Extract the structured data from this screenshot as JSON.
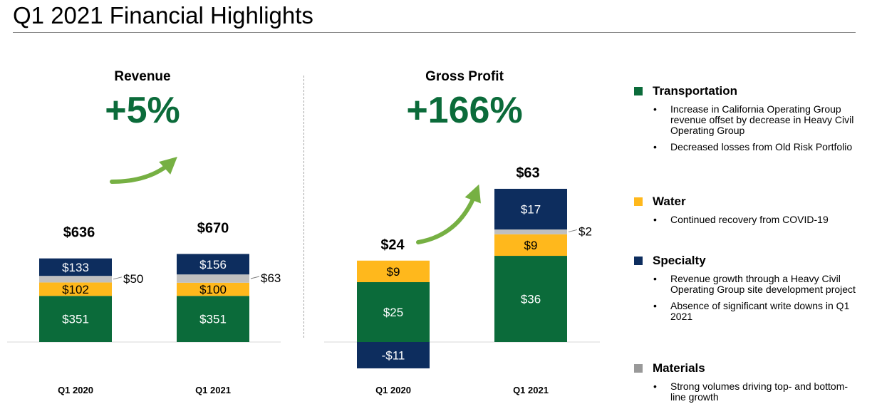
{
  "page": {
    "title": "Q1 2021 Financial Highlights"
  },
  "colors": {
    "transportation": "#0b6b3a",
    "water": "#ffb81c",
    "specialty": "#0d2d5e",
    "materials": "#bfbfbf",
    "accent": "#0b6b3a",
    "arrow": "#76b043"
  },
  "chart_data": [
    {
      "type": "bar",
      "stacked": true,
      "title": "Revenue",
      "change": "+5%",
      "categories": [
        "Q1 2020",
        "Q1 2021"
      ],
      "totals": [
        "$636",
        "$670"
      ],
      "series": [
        {
          "name": "Transportation",
          "values": [
            351,
            351
          ],
          "labels": [
            "$351",
            "$351"
          ]
        },
        {
          "name": "Water",
          "values": [
            102,
            100
          ],
          "labels": [
            "$102",
            "$100"
          ]
        },
        {
          "name": "Materials",
          "values": [
            50,
            63
          ],
          "labels": [
            "$50",
            "$63"
          ]
        },
        {
          "name": "Specialty",
          "values": [
            133,
            156
          ],
          "labels": [
            "$133",
            "$156"
          ]
        }
      ],
      "ylim": [
        0,
        700
      ]
    },
    {
      "type": "bar",
      "stacked": true,
      "title": "Gross Profit",
      "change": "+166%",
      "categories": [
        "Q1 2020",
        "Q1 2021"
      ],
      "totals": [
        "$24",
        "$63"
      ],
      "series": [
        {
          "name": "Transportation",
          "values": [
            25,
            36
          ],
          "labels": [
            "$25",
            "$36"
          ]
        },
        {
          "name": "Water",
          "values": [
            9,
            9
          ],
          "labels": [
            "$9",
            "$9"
          ]
        },
        {
          "name": "Materials",
          "values": [
            0,
            2
          ],
          "labels": [
            "",
            "$2"
          ]
        },
        {
          "name": "Specialty",
          "values": [
            -11,
            17
          ],
          "labels": [
            "-$11",
            "$17"
          ]
        }
      ],
      "ylim": [
        -12,
        70
      ]
    }
  ],
  "legend": [
    {
      "name": "Transportation",
      "color": "#0b6b3a",
      "bullets": [
        "Increase in California Operating Group revenue offset by decrease in Heavy Civil Operating Group",
        "Decreased losses from Old Risk Portfolio"
      ]
    },
    {
      "name": "Water",
      "color": "#ffb81c",
      "bullets": [
        "Continued recovery from COVID-19"
      ]
    },
    {
      "name": "Specialty",
      "color": "#0d2d5e",
      "bullets": [
        "Revenue growth through a Heavy Civil Operating Group site development project",
        "Absence of significant write downs in Q1 2021"
      ]
    },
    {
      "name": "Materials",
      "color": "#999999",
      "bullets": [
        "Strong volumes driving top- and bottom-line growth"
      ]
    }
  ]
}
